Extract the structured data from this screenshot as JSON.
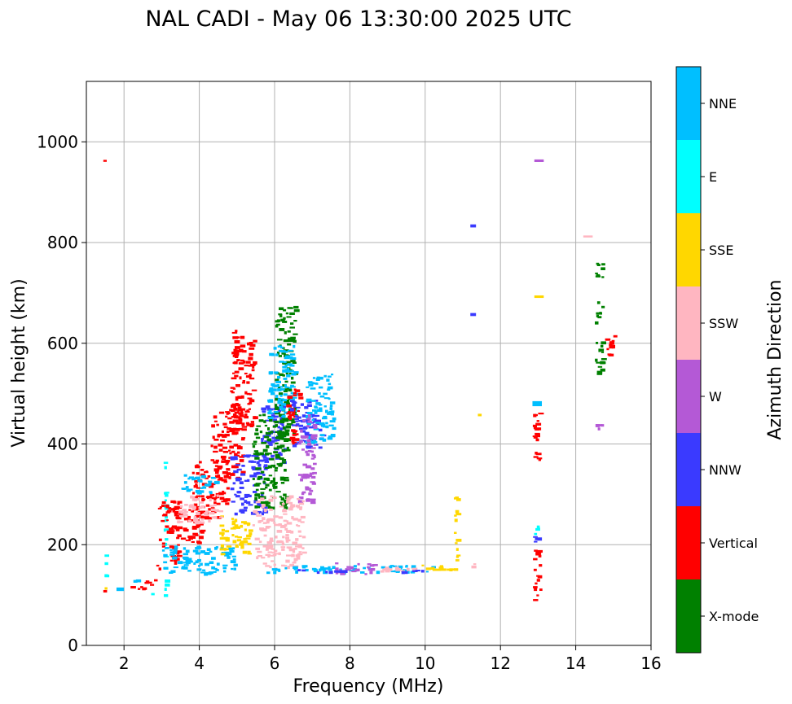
{
  "chart_data": {
    "type": "scatter",
    "title": "NAL CADI - May 06 13:30:00 2025 UTC",
    "xlabel": "Frequency (MHz)",
    "ylabel": "Virtual height (km)",
    "xlim": [
      1,
      16
    ],
    "ylim": [
      0,
      1120
    ],
    "xticks": [
      2,
      4,
      6,
      8,
      10,
      12,
      14,
      16
    ],
    "yticks": [
      0,
      200,
      400,
      600,
      800,
      1000
    ],
    "grid": true,
    "colorbar": {
      "label": "Azimuth Direction",
      "categories": [
        {
          "name": "X-mode",
          "color": "#008000"
        },
        {
          "name": "Vertical",
          "color": "#ff0000"
        },
        {
          "name": "NNW",
          "color": "#3a3aff"
        },
        {
          "name": "W",
          "color": "#b459d6"
        },
        {
          "name": "SSW",
          "color": "#ffb6c1"
        },
        {
          "name": "SSE",
          "color": "#ffd700"
        },
        {
          "name": "E",
          "color": "#00ffff"
        },
        {
          "name": "NNE",
          "color": "#00bfff"
        }
      ]
    },
    "segments": [
      {
        "cat": "Vertical",
        "f0": 1.45,
        "f1": 1.55,
        "h": [
          960,
          975
        ]
      },
      {
        "cat": "Vertical",
        "f0": 1.45,
        "f1": 1.55,
        "h": [
          105,
          110
        ]
      },
      {
        "cat": "E",
        "f0": 1.48,
        "f1": 1.55,
        "h": [
          100,
          185
        ]
      },
      {
        "cat": "SSE",
        "f0": 1.48,
        "f1": 1.55,
        "h": [
          110,
          125
        ]
      },
      {
        "cat": "NNE",
        "f0": 1.8,
        "f1": 2.0,
        "h": [
          108,
          115
        ]
      },
      {
        "cat": "Vertical",
        "f0": 1.9,
        "f1": 2.6,
        "h": [
          110,
          120
        ]
      },
      {
        "cat": "Vertical",
        "f0": 2.4,
        "f1": 2.9,
        "h": [
          118,
          132
        ]
      },
      {
        "cat": "NNE",
        "f0": 2.1,
        "f1": 2.4,
        "h": [
          122,
          135
        ]
      },
      {
        "cat": "E",
        "f0": 2.7,
        "f1": 2.8,
        "h": [
          90,
          110
        ]
      },
      {
        "cat": "Vertical",
        "f0": 2.85,
        "f1": 3.0,
        "h": [
          150,
          165
        ]
      },
      {
        "cat": "E",
        "f0": 3.05,
        "f1": 3.15,
        "h": [
          90,
          365
        ]
      },
      {
        "cat": "Vertical",
        "f0": 2.9,
        "f1": 3.5,
        "h": [
          160,
          290
        ]
      },
      {
        "cat": "Vertical",
        "f0": 3.3,
        "f1": 4.2,
        "h": [
          200,
          280
        ]
      },
      {
        "cat": "Vertical",
        "f0": 3.8,
        "f1": 4.8,
        "h": [
          250,
          370
        ]
      },
      {
        "cat": "Vertical",
        "f0": 4.3,
        "f1": 5.2,
        "h": [
          330,
          470
        ]
      },
      {
        "cat": "Vertical",
        "f0": 4.8,
        "f1": 5.5,
        "h": [
          420,
          630
        ]
      },
      {
        "cat": "NNE",
        "f0": 3.0,
        "f1": 5.0,
        "h": [
          140,
          200
        ]
      },
      {
        "cat": "NNE",
        "f0": 3.5,
        "f1": 4.5,
        "h": [
          300,
          340
        ]
      },
      {
        "cat": "SSE",
        "f0": 4.5,
        "f1": 5.4,
        "h": [
          180,
          260
        ]
      },
      {
        "cat": "SSW",
        "f0": 3.4,
        "f1": 4.6,
        "h": [
          240,
          300
        ]
      },
      {
        "cat": "NNW",
        "f0": 4.8,
        "f1": 5.8,
        "h": [
          260,
          380
        ]
      },
      {
        "cat": "NNW",
        "f0": 5.6,
        "f1": 6.3,
        "h": [
          360,
          480
        ]
      },
      {
        "cat": "X-mode",
        "f0": 5.4,
        "f1": 6.4,
        "h": [
          270,
          460
        ]
      },
      {
        "cat": "X-mode",
        "f0": 6.0,
        "f1": 6.6,
        "h": [
          400,
          675
        ]
      },
      {
        "cat": "NNE",
        "f0": 5.8,
        "f1": 6.6,
        "h": [
          450,
          600
        ]
      },
      {
        "cat": "Vertical",
        "f0": 6.3,
        "f1": 6.7,
        "h": [
          400,
          510
        ]
      },
      {
        "cat": "NNW",
        "f0": 6.4,
        "f1": 7.3,
        "h": [
          390,
          490
        ]
      },
      {
        "cat": "NNE",
        "f0": 6.8,
        "f1": 7.6,
        "h": [
          400,
          540
        ]
      },
      {
        "cat": "W",
        "f0": 6.6,
        "f1": 7.1,
        "h": [
          280,
          460
        ]
      },
      {
        "cat": "SSW",
        "f0": 5.4,
        "f1": 6.8,
        "h": [
          150,
          300
        ]
      },
      {
        "cat": "NNE",
        "f0": 5.7,
        "f1": 10.3,
        "h": [
          143,
          160
        ]
      },
      {
        "cat": "W",
        "f0": 7.5,
        "f1": 8.8,
        "h": [
          140,
          165
        ]
      },
      {
        "cat": "NNW",
        "f0": 6.6,
        "f1": 8.0,
        "h": [
          143,
          152
        ]
      },
      {
        "cat": "SSW",
        "f0": 8.8,
        "f1": 9.8,
        "h": [
          145,
          160
        ]
      },
      {
        "cat": "NNW",
        "f0": 9.2,
        "f1": 10.0,
        "h": [
          143,
          152
        ]
      },
      {
        "cat": "SSE",
        "f0": 9.9,
        "f1": 10.9,
        "h": [
          145,
          165
        ]
      },
      {
        "cat": "SSE",
        "f0": 10.75,
        "f1": 10.9,
        "h": [
          165,
          300
        ]
      },
      {
        "cat": "SSW",
        "f0": 11.2,
        "f1": 11.35,
        "h": [
          150,
          170
        ]
      },
      {
        "cat": "NNW",
        "f0": 11.2,
        "f1": 11.35,
        "h": [
          830,
          836
        ]
      },
      {
        "cat": "NNW",
        "f0": 11.2,
        "f1": 11.35,
        "h": [
          654,
          660
        ]
      },
      {
        "cat": "SSE",
        "f0": 11.4,
        "f1": 11.5,
        "h": [
          455,
          460
        ]
      },
      {
        "cat": "W",
        "f0": 12.9,
        "f1": 13.15,
        "h": [
          960,
          965
        ]
      },
      {
        "cat": "SSE",
        "f0": 12.9,
        "f1": 13.15,
        "h": [
          690,
          695
        ]
      },
      {
        "cat": "NNE",
        "f0": 12.85,
        "f1": 13.1,
        "h": [
          475,
          485
        ]
      },
      {
        "cat": "Vertical",
        "f0": 12.85,
        "f1": 13.1,
        "h": [
          365,
          470
        ]
      },
      {
        "cat": "E",
        "f0": 12.85,
        "f1": 13.1,
        "h": [
          220,
          240
        ]
      },
      {
        "cat": "NNW",
        "f0": 12.85,
        "f1": 13.1,
        "h": [
          200,
          220
        ]
      },
      {
        "cat": "Vertical",
        "f0": 12.85,
        "f1": 13.1,
        "h": [
          88,
          195
        ]
      },
      {
        "cat": "SSW",
        "f0": 14.2,
        "f1": 14.45,
        "h": [
          810,
          814
        ]
      },
      {
        "cat": "X-mode",
        "f0": 14.5,
        "f1": 14.75,
        "h": [
          728,
          772
        ]
      },
      {
        "cat": "X-mode",
        "f0": 14.5,
        "f1": 14.75,
        "h": [
          640,
          685
        ]
      },
      {
        "cat": "X-mode",
        "f0": 14.5,
        "f1": 14.75,
        "h": [
          530,
          615
        ]
      },
      {
        "cat": "W",
        "f0": 14.5,
        "f1": 14.75,
        "h": [
          420,
          440
        ]
      },
      {
        "cat": "Vertical",
        "f0": 14.75,
        "f1": 15.1,
        "h": [
          568,
          620
        ]
      }
    ]
  }
}
